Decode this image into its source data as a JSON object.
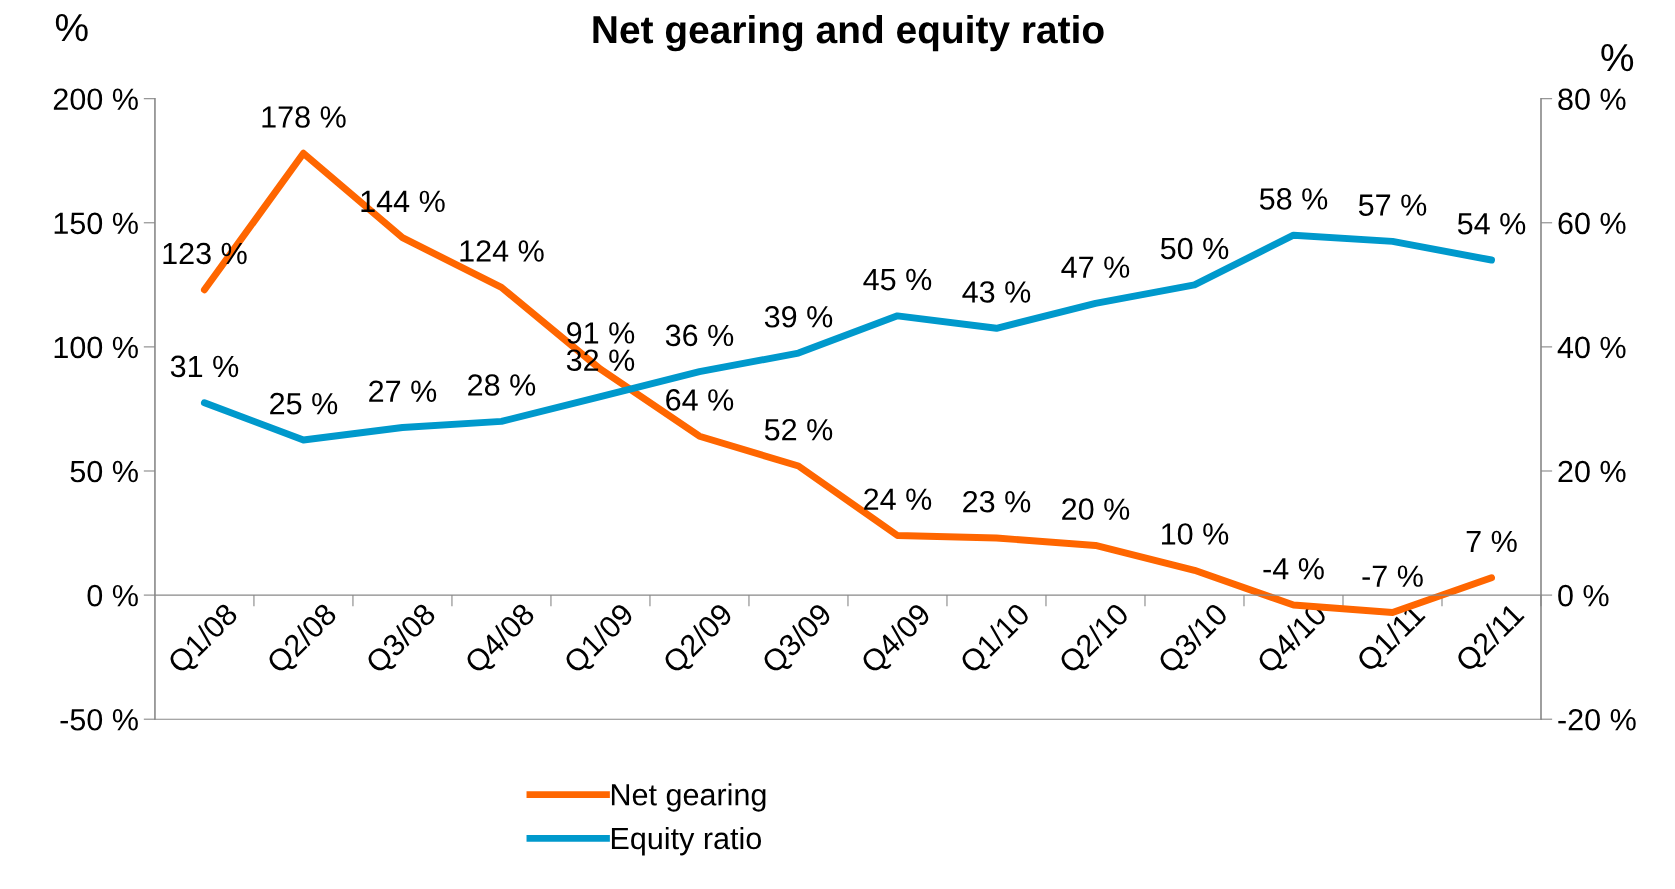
{
  "chart_data": {
    "type": "line",
    "title": "Net gearing and equity ratio",
    "ylabel": "%",
    "y2label": "%",
    "categories": [
      "Q1/08",
      "Q2/08",
      "Q3/08",
      "Q4/08",
      "Q1/09",
      "Q2/09",
      "Q3/09",
      "Q4/09",
      "Q1/10",
      "Q2/10",
      "Q3/10",
      "Q4/10",
      "Q1/11",
      "Q2/11"
    ],
    "series": [
      {
        "name": "Net gearing",
        "color": "#ff6600",
        "values": [
          123,
          178,
          144,
          124,
          91,
          64,
          52,
          24,
          23,
          20,
          10,
          -4,
          -7,
          7
        ],
        "value_labels": [
          "123 %",
          "178 %",
          "144 %",
          "124 %",
          "91 %",
          "64 %",
          "52 %",
          "24 %",
          "23 %",
          "20 %",
          "10 %",
          "-4 %",
          "-7 %",
          "7 %"
        ]
      },
      {
        "name": "Equity ratio",
        "color": "#0099cc",
        "axis": "y2",
        "values": [
          31,
          25,
          27,
          28,
          32,
          36,
          39,
          45,
          43,
          47,
          50,
          58,
          57,
          54
        ],
        "value_labels": [
          "31 %",
          "25 %",
          "27 %",
          "28 %",
          "32 %",
          "36 %",
          "39 %",
          "45 %",
          "43 %",
          "47 %",
          "50 %",
          "58 %",
          "57 %",
          "54 %"
        ]
      }
    ],
    "ylim": [
      -50,
      200
    ],
    "yticks": [
      {
        "value": -50,
        "label": "-50 %"
      },
      {
        "value": 0,
        "label": "0 %"
      },
      {
        "value": 50,
        "label": "50 %"
      },
      {
        "value": 100,
        "label": "100 %"
      },
      {
        "value": 150,
        "label": "150 %"
      },
      {
        "value": 200,
        "label": "200 %"
      }
    ],
    "y2lim": [
      -20,
      80
    ],
    "y2ticks": [
      {
        "value": -20,
        "label": "-20 %"
      },
      {
        "value": 0,
        "label": "0 %"
      },
      {
        "value": 20,
        "label": "20 %"
      },
      {
        "value": 40,
        "label": "40 %"
      },
      {
        "value": 60,
        "label": "60 %"
      },
      {
        "value": 80,
        "label": "80 %"
      }
    ],
    "grid": false,
    "legend": "bottom",
    "marker": "none",
    "line_style": "solid"
  }
}
